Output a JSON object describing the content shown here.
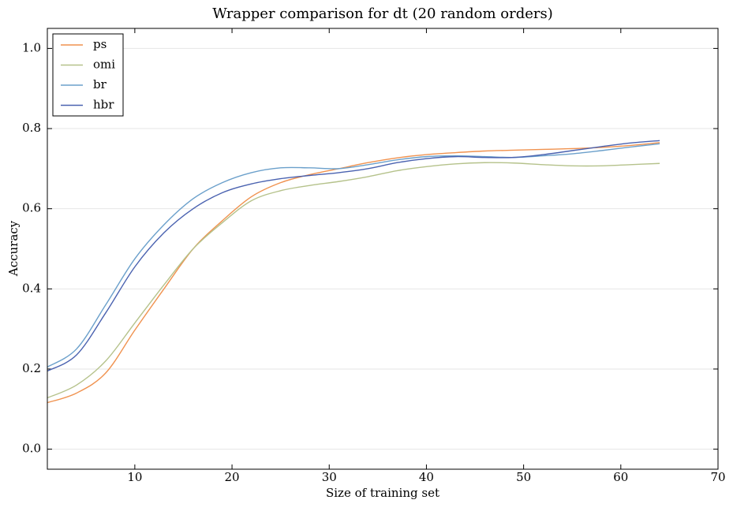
{
  "chart_data": {
    "type": "line",
    "title": "Wrapper comparison for dt (20 random orders)",
    "x_label": "Size of training set",
    "y_label": "Accuracy",
    "x": [
      1,
      4,
      7,
      10,
      13,
      16,
      19,
      22,
      25,
      28,
      31,
      34,
      37,
      40,
      43,
      46,
      49,
      52,
      55,
      58,
      61,
      64
    ],
    "series": [
      {
        "name": "ps",
        "color": "#f0924f",
        "values": [
          0.116,
          0.14,
          0.19,
          0.297,
          0.4,
          0.5,
          0.57,
          0.63,
          0.665,
          0.685,
          0.7,
          0.715,
          0.727,
          0.735,
          0.74,
          0.744,
          0.746,
          0.748,
          0.75,
          0.753,
          0.758,
          0.765
        ]
      },
      {
        "name": "omi",
        "color": "#b5c28b",
        "values": [
          0.128,
          0.16,
          0.22,
          0.315,
          0.41,
          0.5,
          0.565,
          0.62,
          0.645,
          0.658,
          0.668,
          0.68,
          0.695,
          0.705,
          0.712,
          0.715,
          0.714,
          0.71,
          0.707,
          0.707,
          0.71,
          0.713
        ]
      },
      {
        "name": "br",
        "color": "#6ba0cb",
        "values": [
          0.205,
          0.25,
          0.36,
          0.475,
          0.56,
          0.625,
          0.665,
          0.69,
          0.702,
          0.702,
          0.7,
          0.71,
          0.722,
          0.73,
          0.732,
          0.73,
          0.728,
          0.732,
          0.737,
          0.745,
          0.754,
          0.762
        ]
      },
      {
        "name": "hbr",
        "color": "#4a62b0",
        "values": [
          0.195,
          0.235,
          0.34,
          0.455,
          0.54,
          0.6,
          0.64,
          0.662,
          0.675,
          0.683,
          0.69,
          0.7,
          0.715,
          0.725,
          0.73,
          0.728,
          0.728,
          0.735,
          0.745,
          0.755,
          0.764,
          0.77
        ]
      }
    ],
    "xlim": [
      1,
      70
    ],
    "xticks": [
      10,
      20,
      30,
      40,
      50,
      60,
      70
    ],
    "ylim": [
      -0.05,
      1.05
    ],
    "yticks": [
      {
        "value": 0,
        "label": "0.0"
      },
      0.2,
      0.4,
      0.6,
      0.8,
      {
        "value": 1,
        "label": "1.0"
      }
    ],
    "grid": true,
    "legend": "upper-left"
  }
}
